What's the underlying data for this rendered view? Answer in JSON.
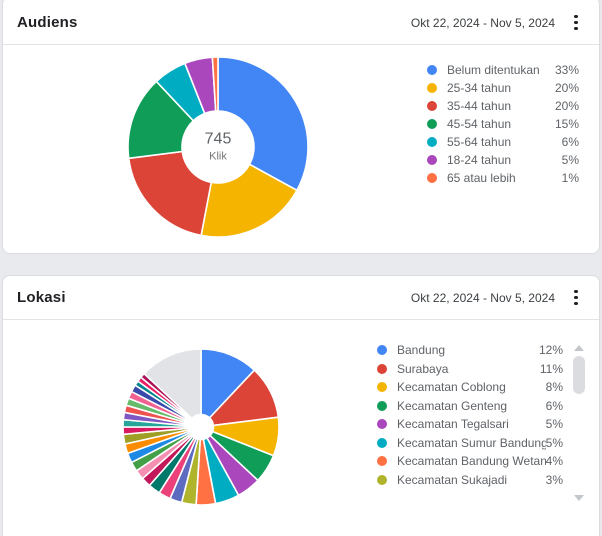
{
  "cards": [
    {
      "title": "Audiens",
      "date_range": "Okt 22, 2024 - Nov 5, 2024",
      "menu_icon": "kebab-menu-icon"
    },
    {
      "title": "Lokasi",
      "date_range": "Okt 22, 2024 - Nov 5, 2024",
      "menu_icon": "kebab-menu-icon"
    }
  ],
  "chart_data": [
    {
      "type": "pie",
      "title": "Audiens",
      "donut": true,
      "donut_hole_ratio": 0.4,
      "center_value": "745",
      "center_label": "Klik",
      "legend_position": "right",
      "series": [
        {
          "label": "Belum ditentukan",
          "value": 33,
          "pct": "33%",
          "color": "#4285F4"
        },
        {
          "label": "25-34 tahun",
          "value": 20,
          "pct": "20%",
          "color": "#F4B400"
        },
        {
          "label": "35-44 tahun",
          "value": 20,
          "pct": "20%",
          "color": "#DB4437"
        },
        {
          "label": "45-54 tahun",
          "value": 15,
          "pct": "15%",
          "color": "#0F9D58"
        },
        {
          "label": "55-64 tahun",
          "value": 6,
          "pct": "6%",
          "color": "#00ACC1"
        },
        {
          "label": "18-24 tahun",
          "value": 5,
          "pct": "5%",
          "color": "#AB47BC"
        },
        {
          "label": "65 atau lebih",
          "value": 1,
          "pct": "1%",
          "color": "#FF7043"
        }
      ]
    },
    {
      "type": "pie",
      "title": "Lokasi",
      "donut": true,
      "donut_hole_ratio": 0.16,
      "legend_position": "right",
      "legend_scrollable": true,
      "series": [
        {
          "label": "Bandung",
          "value": 12,
          "pct": "12%",
          "color": "#4285F4"
        },
        {
          "label": "Surabaya",
          "value": 11,
          "pct": "11%",
          "color": "#DB4437"
        },
        {
          "label": "Kecamatan Coblong",
          "value": 8,
          "pct": "8%",
          "color": "#F4B400"
        },
        {
          "label": "Kecamatan Genteng",
          "value": 6,
          "pct": "6%",
          "color": "#0F9D58"
        },
        {
          "label": "Kecamatan Tegalsari",
          "value": 5,
          "pct": "5%",
          "color": "#AB47BC"
        },
        {
          "label": "Kecamatan Sumur Bandung",
          "value": 5,
          "pct": "5%",
          "color": "#00ACC1"
        },
        {
          "label": "Kecamatan Bandung Wetan",
          "value": 4,
          "pct": "4%",
          "color": "#FF7043"
        },
        {
          "label": "Kecamatan Sukajadi",
          "value": 3,
          "pct": "3%",
          "color": "#AFB42B"
        }
      ],
      "unlabeled_slices": [
        {
          "value": 2.5,
          "color": "#5C6BC0"
        },
        {
          "value": 2.5,
          "color": "#EC407A"
        },
        {
          "value": 2.5,
          "color": "#00796B"
        },
        {
          "value": 2,
          "color": "#C2185B"
        },
        {
          "value": 2,
          "color": "#F48FB1"
        },
        {
          "value": 2,
          "color": "#43A047"
        },
        {
          "value": 2,
          "color": "#1E88E5"
        },
        {
          "value": 2,
          "color": "#FB8C00"
        },
        {
          "value": 2,
          "color": "#9E9D24"
        },
        {
          "value": 1.5,
          "color": "#D81B60"
        },
        {
          "value": 1.5,
          "color": "#26A69A"
        },
        {
          "value": 1.5,
          "color": "#7E57C2"
        },
        {
          "value": 1.5,
          "color": "#EF5350"
        },
        {
          "value": 1.5,
          "color": "#66BB6A"
        },
        {
          "value": 1.5,
          "color": "#F06292"
        },
        {
          "value": 1.5,
          "color": "#3949AB"
        },
        {
          "value": 1,
          "color": "#00838F"
        },
        {
          "value": 1,
          "color": "#E91E63"
        },
        {
          "value": 1,
          "color": "#AD1457"
        }
      ],
      "others_slice": {
        "value": 13,
        "color": "#E1E3E6"
      }
    }
  ],
  "colors": {
    "page_background": "#E8EAED",
    "card_background": "#FFFFFF",
    "card_border": "#DADCE0",
    "divider": "#E1E3E6",
    "legend_text": "#5F6368",
    "title_text": "#202124",
    "scrollbar_thumb": "#DADCE0"
  }
}
